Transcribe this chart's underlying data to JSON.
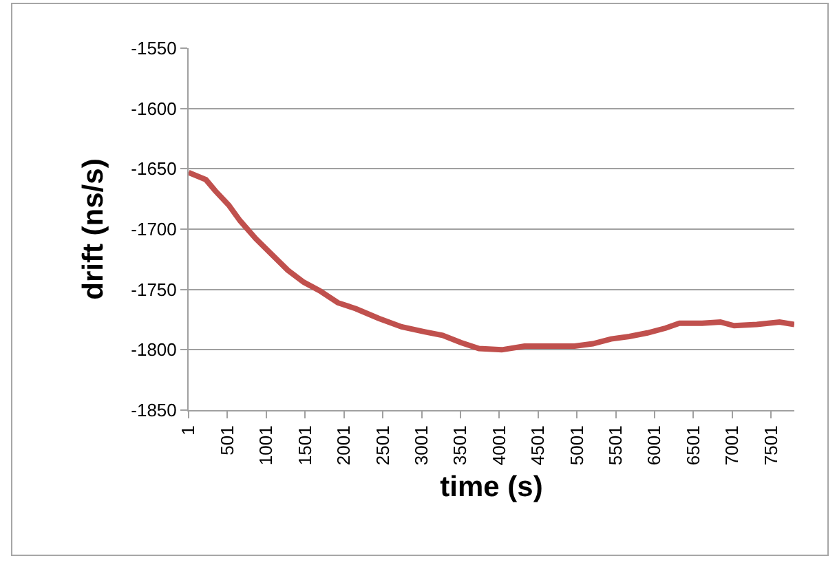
{
  "chart_data": {
    "type": "line",
    "xlabel": "time (s)",
    "ylabel": "drift (ns/s)",
    "x": [
      1,
      224,
      341,
      517,
      663,
      868,
      1073,
      1278,
      1483,
      1688,
      1923,
      2157,
      2450,
      2743,
      3036,
      3271,
      3505,
      3740,
      4033,
      4326,
      4620,
      4971,
      5206,
      5440,
      5675,
      5909,
      6144,
      6320,
      6613,
      6848,
      7024,
      7317,
      7610,
      7800
    ],
    "series": [
      {
        "color": "#c0504d",
        "values": [
          -1653,
          -1659,
          -1668,
          -1680,
          -1693,
          -1708,
          -1721,
          -1734,
          -1744,
          -1751,
          -1761,
          -1766,
          -1774,
          -1781,
          -1785,
          -1788,
          -1794,
          -1799,
          -1800,
          -1797,
          -1797,
          -1797,
          -1795,
          -1791,
          -1789,
          -1786,
          -1782,
          -1778,
          -1778,
          -1777,
          -1780,
          -1779,
          -1777,
          -1779
        ]
      }
    ],
    "xlim": [
      1,
      7800
    ],
    "xticks": [
      1,
      501,
      1001,
      1501,
      2001,
      2501,
      3001,
      3501,
      4001,
      4501,
      5001,
      5501,
      6001,
      6501,
      7001,
      7501
    ],
    "ylim": [
      -1850,
      -1550
    ],
    "yticks": [
      -1850,
      -1800,
      -1750,
      -1700,
      -1650,
      -1600,
      -1550
    ],
    "grid": "y"
  }
}
